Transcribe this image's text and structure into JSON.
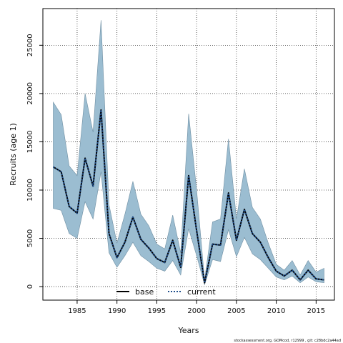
{
  "chart_data": {
    "type": "area",
    "xlabel": "Years",
    "ylabel": "Recruits (age 1)",
    "xlim": [
      1980.7,
      2017.3
    ],
    "ylim": [
      -1400,
      28800
    ],
    "x_ticks": [
      1985,
      1990,
      1995,
      2000,
      2005,
      2010,
      2015
    ],
    "y_ticks": [
      0,
      5000,
      10000,
      15000,
      20000,
      25000
    ],
    "grid": "dotted",
    "legend_position": "bottom-center",
    "x": [
      1982,
      1983,
      1984,
      1985,
      1986,
      1987,
      1988,
      1989,
      1990,
      1991,
      1992,
      1993,
      1994,
      1995,
      1996,
      1997,
      1998,
      1999,
      2000,
      2001,
      2002,
      2003,
      2004,
      2005,
      2006,
      2007,
      2008,
      2009,
      2010,
      2011,
      2012,
      2013,
      2014,
      2015,
      2016
    ],
    "band": {
      "color": "#9bbdd1",
      "upper": [
        19100,
        17800,
        12500,
        11500,
        20000,
        16000,
        27600,
        8500,
        4500,
        7500,
        10900,
        7500,
        6300,
        4400,
        3900,
        7400,
        3500,
        17900,
        10000,
        700,
        6700,
        7000,
        15300,
        7000,
        12200,
        8200,
        7000,
        4500,
        2300,
        1700,
        2700,
        1200,
        2700,
        1500,
        1900
      ],
      "lower": [
        8100,
        7900,
        5500,
        5000,
        8800,
        7000,
        11900,
        3500,
        2000,
        3200,
        4600,
        3200,
        2600,
        1900,
        1600,
        2700,
        1200,
        6000,
        3200,
        200,
        2800,
        2600,
        5900,
        3100,
        5100,
        3400,
        2800,
        1900,
        1000,
        700,
        1100,
        400,
        1000,
        500,
        400
      ]
    },
    "series": [
      {
        "name": "base",
        "style": "solid",
        "color": "#000000",
        "values": [
          12400,
          11900,
          8300,
          7600,
          13300,
          10400,
          18300,
          5500,
          3000,
          4600,
          7200,
          4900,
          4000,
          2900,
          2500,
          4800,
          2000,
          11500,
          5800,
          400,
          4400,
          4300,
          9700,
          4800,
          8000,
          5500,
          4600,
          3000,
          1600,
          1100,
          1700,
          700,
          1700,
          800,
          700
        ]
      },
      {
        "name": "current",
        "style": "dotted",
        "color": "#1f4e8c",
        "values": [
          12400,
          11900,
          8300,
          7600,
          13300,
          10400,
          18300,
          5500,
          3000,
          4600,
          7200,
          4900,
          4000,
          2900,
          2500,
          4800,
          2000,
          11500,
          5800,
          400,
          4400,
          4300,
          9700,
          4800,
          8000,
          5500,
          4600,
          3000,
          1600,
          1100,
          1700,
          700,
          1700,
          800,
          700
        ]
      }
    ]
  },
  "footer": {
    "text": "stockassessment.org, GOMcod, r12999 , git: c28bdc2a44ad"
  }
}
